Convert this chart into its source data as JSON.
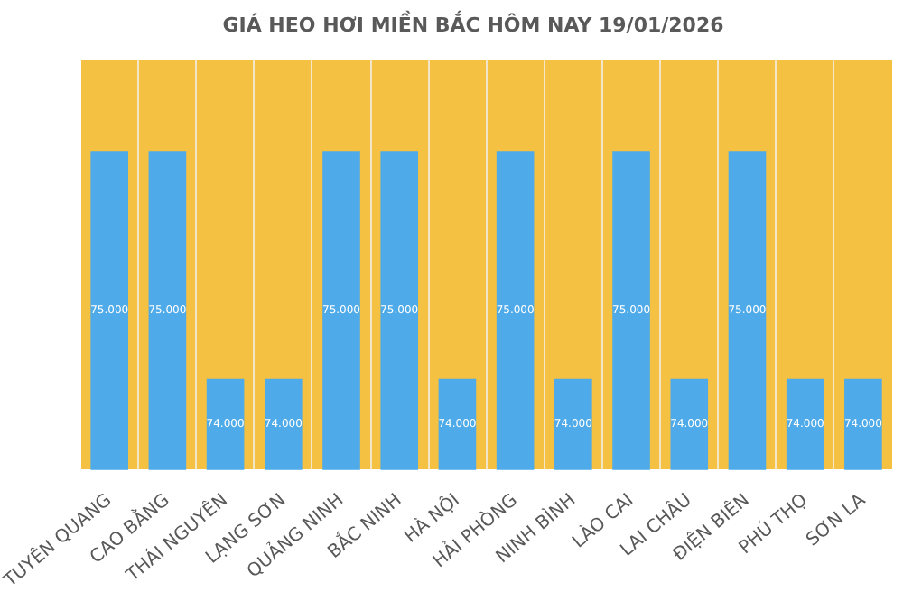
{
  "chart_data": {
    "type": "bar",
    "title": "GIÁ HEO HƠI MIỀN BẮC HÔM NAY 19/01/2026",
    "categories": [
      "TUYÊN QUANG",
      "CAO BẰNG",
      "THÁI NGUYÊN",
      "LẠNG SƠN",
      "QUẢNG NINH",
      "BẮC NINH",
      "HÀ NỘI",
      "HẢI PHÒNG",
      "NINH BÌNH",
      "LÀO CAI",
      "LAI CHÂU",
      "ĐIỆN BIÊN",
      "PHÚ THỌ",
      "SƠN LA"
    ],
    "values": [
      75000,
      75000,
      74000,
      74000,
      75000,
      75000,
      74000,
      75000,
      74000,
      75000,
      74000,
      75000,
      74000,
      74000
    ],
    "value_labels": [
      "75.000",
      "75.000",
      "74.000",
      "74.000",
      "75.000",
      "75.000",
      "74.000",
      "75.000",
      "74.000",
      "75.000",
      "74.000",
      "75.000",
      "74.000",
      "74.000"
    ],
    "color": "#4eaae8",
    "legend": false
  }
}
